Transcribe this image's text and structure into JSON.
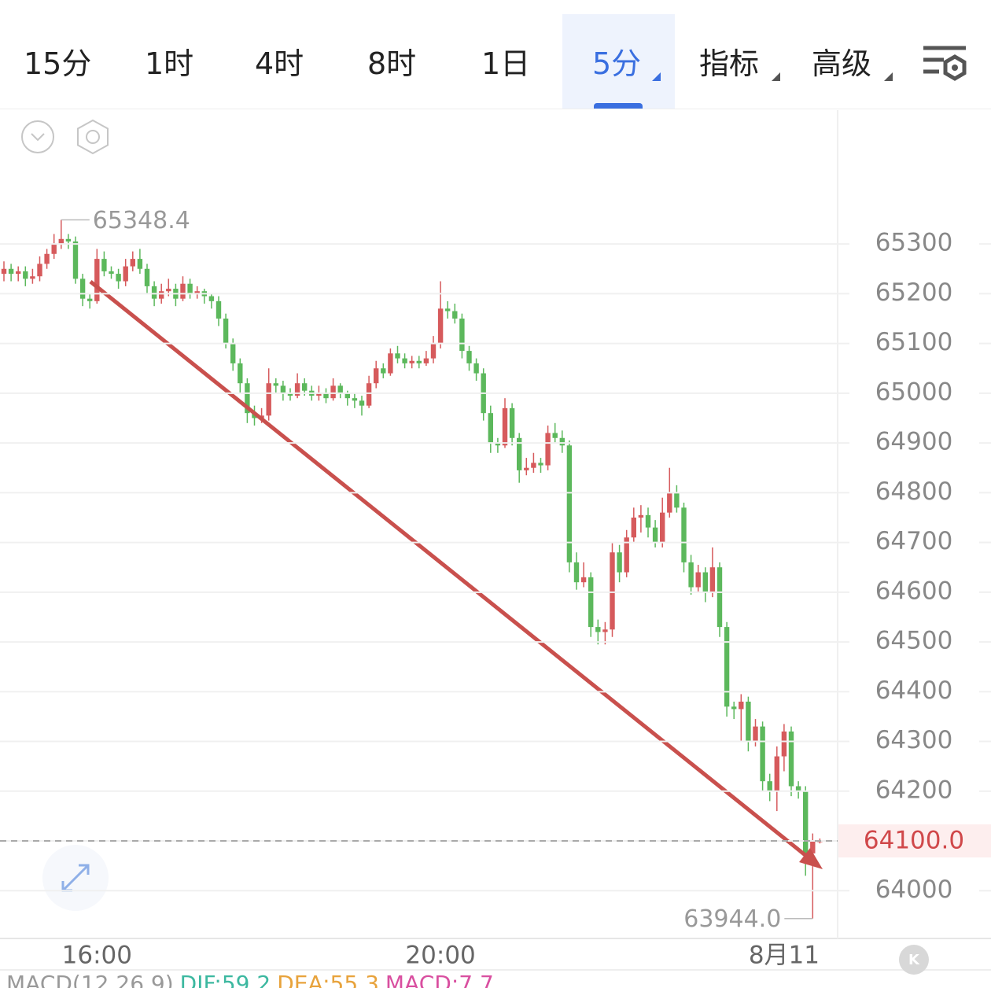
{
  "tabs": [
    "15分",
    "1时",
    "4时",
    "8时",
    "1日",
    "5分",
    "指标",
    "高级"
  ],
  "chart_data": {
    "type": "candlestick",
    "categories": [
      null,
      null,
      null,
      null,
      null,
      null,
      null,
      null,
      null,
      null,
      null,
      null,
      null,
      "16:00",
      null,
      null,
      null,
      null,
      null,
      null,
      null,
      null,
      null,
      null,
      null,
      null,
      null,
      null,
      null,
      null,
      null,
      null,
      null,
      null,
      null,
      null,
      null,
      null,
      null,
      null,
      null,
      null,
      null,
      null,
      null,
      null,
      null,
      null,
      null,
      null,
      null,
      null,
      null,
      null,
      null,
      null,
      null,
      null,
      null,
      null,
      null,
      "20:00",
      null,
      null,
      null,
      null,
      null,
      null,
      null,
      null,
      null,
      null,
      null,
      null,
      null,
      null,
      null,
      null,
      null,
      null,
      null,
      null,
      null,
      null,
      null,
      null,
      null,
      null,
      null,
      null,
      null,
      null,
      null,
      null,
      null,
      null,
      null,
      null,
      null,
      null,
      null,
      null,
      null,
      null,
      null,
      null,
      null,
      null,
      null,
      "8月11",
      null,
      null,
      null,
      null,
      null
    ],
    "ohlc": [
      [
        65240,
        65265,
        65225,
        65250
      ],
      [
        65250,
        65260,
        65225,
        65240
      ],
      [
        65240,
        65255,
        65225,
        65245
      ],
      [
        65245,
        65255,
        65215,
        65230
      ],
      [
        65230,
        65250,
        65220,
        65235
      ],
      [
        65235,
        65275,
        65225,
        65260
      ],
      [
        65260,
        65290,
        65250,
        65280
      ],
      [
        65280,
        65320,
        65270,
        65300
      ],
      [
        65300,
        65348.4,
        65290,
        65310
      ],
      [
        65310,
        65320,
        65290,
        65305
      ],
      [
        65305,
        65315,
        65220,
        65230
      ],
      [
        65230,
        65240,
        65175,
        65190
      ],
      [
        65190,
        65200,
        65170,
        65185
      ],
      [
        65185,
        65290,
        65180,
        65270
      ],
      [
        65270,
        65285,
        65235,
        65245
      ],
      [
        65245,
        65255,
        65230,
        65240
      ],
      [
        65240,
        65250,
        65210,
        65225
      ],
      [
        65225,
        65270,
        65215,
        65255
      ],
      [
        65255,
        65285,
        65245,
        65270
      ],
      [
        65270,
        65290,
        65240,
        65250
      ],
      [
        65250,
        65260,
        65200,
        65215
      ],
      [
        65215,
        65225,
        65175,
        65190
      ],
      [
        65190,
        65220,
        65180,
        65205
      ],
      [
        65205,
        65230,
        65195,
        65210
      ],
      [
        65210,
        65220,
        65175,
        65190
      ],
      [
        65190,
        65235,
        65185,
        65220
      ],
      [
        65220,
        65230,
        65190,
        65200
      ],
      [
        65200,
        65215,
        65190,
        65205
      ],
      [
        65205,
        65210,
        65180,
        65195
      ],
      [
        65195,
        65200,
        65170,
        65185
      ],
      [
        65185,
        65195,
        65135,
        65150
      ],
      [
        65150,
        65160,
        65090,
        65100
      ],
      [
        65100,
        65110,
        65045,
        65060
      ],
      [
        65060,
        65070,
        65000,
        65020
      ],
      [
        65020,
        65030,
        64940,
        64960
      ],
      [
        64960,
        64975,
        64935,
        64950
      ],
      [
        64950,
        64970,
        64940,
        64955
      ],
      [
        64955,
        65050,
        64945,
        65020
      ],
      [
        65020,
        65030,
        65000,
        65015
      ],
      [
        65015,
        65025,
        64985,
        65000
      ],
      [
        65000,
        65010,
        64985,
        64995
      ],
      [
        64995,
        65040,
        64990,
        65020
      ],
      [
        65020,
        65030,
        64995,
        65005
      ],
      [
        65005,
        65015,
        64985,
        64995
      ],
      [
        64995,
        65015,
        64985,
        65000
      ],
      [
        65000,
        65010,
        64980,
        64990
      ],
      [
        64990,
        65030,
        64985,
        65015
      ],
      [
        65015,
        65020,
        64990,
        65000
      ],
      [
        65000,
        65005,
        64975,
        64990
      ],
      [
        64990,
        65000,
        64970,
        64985
      ],
      [
        64985,
        64995,
        64955,
        64975
      ],
      [
        64975,
        65035,
        64970,
        65020
      ],
      [
        65020,
        65065,
        65010,
        65050
      ],
      [
        65050,
        65060,
        65030,
        65040
      ],
      [
        65040,
        65090,
        65035,
        65080
      ],
      [
        65080,
        65095,
        65060,
        65070
      ],
      [
        65070,
        65080,
        65050,
        65060
      ],
      [
        65060,
        65075,
        65050,
        65065
      ],
      [
        65065,
        65075,
        65050,
        65060
      ],
      [
        65060,
        65085,
        65055,
        65070
      ],
      [
        65070,
        65115,
        65060,
        65100
      ],
      [
        65100,
        65225,
        65090,
        65170
      ],
      [
        65170,
        65185,
        65150,
        65165
      ],
      [
        65165,
        65180,
        65140,
        65150
      ],
      [
        65150,
        65160,
        65070,
        65085
      ],
      [
        65085,
        65095,
        65045,
        65060
      ],
      [
        65060,
        65070,
        65025,
        65040
      ],
      [
        65040,
        65050,
        64945,
        64960
      ],
      [
        64960,
        64975,
        64880,
        64900
      ],
      [
        64900,
        64910,
        64880,
        64895
      ],
      [
        64895,
        64990,
        64890,
        64970
      ],
      [
        64970,
        64980,
        64895,
        64910
      ],
      [
        64910,
        64920,
        64820,
        64845
      ],
      [
        64845,
        64870,
        64835,
        64850
      ],
      [
        64850,
        64880,
        64840,
        64860
      ],
      [
        64860,
        64870,
        64840,
        64855
      ],
      [
        64855,
        64935,
        64845,
        64920
      ],
      [
        64920,
        64940,
        64900,
        64910
      ],
      [
        64910,
        64925,
        64880,
        64895
      ],
      [
        64895,
        64905,
        64640,
        64660
      ],
      [
        64660,
        64680,
        64605,
        64620
      ],
      [
        64620,
        64660,
        64610,
        64630
      ],
      [
        64630,
        64640,
        64510,
        64530
      ],
      [
        64530,
        64545,
        64495,
        64520
      ],
      [
        64520,
        64540,
        64495,
        64525
      ],
      [
        64525,
        64700,
        64510,
        64680
      ],
      [
        64680,
        64695,
        64620,
        64640
      ],
      [
        64640,
        64725,
        64630,
        64710
      ],
      [
        64710,
        64770,
        64700,
        64750
      ],
      [
        64750,
        64775,
        64720,
        64755
      ],
      [
        64755,
        64770,
        64710,
        64730
      ],
      [
        64730,
        64745,
        64690,
        64700
      ],
      [
        64700,
        64790,
        64690,
        64760
      ],
      [
        64760,
        64850,
        64750,
        64800
      ],
      [
        64800,
        64815,
        64760,
        64770
      ],
      [
        64770,
        64780,
        64640,
        64660
      ],
      [
        64660,
        64675,
        64595,
        64610
      ],
      [
        64610,
        64655,
        64600,
        64640
      ],
      [
        64640,
        64650,
        64580,
        64600
      ],
      [
        64600,
        64690,
        64590,
        64650
      ],
      [
        64650,
        64660,
        64510,
        64530
      ],
      [
        64530,
        64540,
        64350,
        64370
      ],
      [
        64370,
        64380,
        64345,
        64365
      ],
      [
        64365,
        64395,
        64300,
        64380
      ],
      [
        64380,
        64390,
        64280,
        64300
      ],
      [
        64300,
        64345,
        64290,
        64330
      ],
      [
        64330,
        64340,
        64200,
        64220
      ],
      [
        64220,
        64235,
        64180,
        64200
      ],
      [
        64200,
        64290,
        64160,
        64270
      ],
      [
        64270,
        64335,
        64240,
        64320
      ],
      [
        64320,
        64330,
        64190,
        64210
      ],
      [
        64210,
        64220,
        64185,
        64200
      ],
      [
        64200,
        64210,
        64030,
        64075
      ],
      [
        64075,
        64115,
        63944,
        64100
      ],
      [
        64100,
        64105,
        64095,
        64100
      ]
    ],
    "up_color": "#d65a5c",
    "down_color": "#5cb85c",
    "ylim": [
      63904,
      65569
    ],
    "yticks": [
      64000,
      64100,
      64200,
      64300,
      64400,
      64500,
      64600,
      64700,
      64800,
      64900,
      65000,
      65100,
      65200,
      65300
    ],
    "grid": true,
    "max_high": 65348.4,
    "min_low": {
      "value": 63944,
      "label": "63944.0"
    },
    "last_price": {
      "value": 64100,
      "label": "64100.0"
    }
  },
  "indicator": {
    "name": "MACD(12,26,9)",
    "dif": "DIF:59.2",
    "dea": "DEA:55.3",
    "macd": "MACD:7.7"
  }
}
